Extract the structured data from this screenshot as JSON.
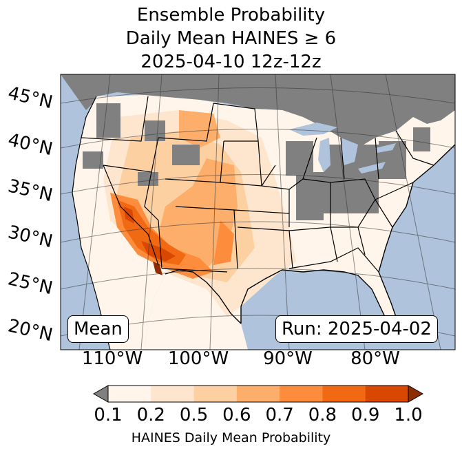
{
  "title": {
    "line1": "Ensemble Probability",
    "line2": "Daily Mean HAINES ≥ 6",
    "line3": "2025-04-10 12z-12z"
  },
  "map": {
    "ocean_color": "#afc4dc",
    "nodata_color": "#808080",
    "lat_labels": [
      "45°N",
      "40°N",
      "35°N",
      "30°N",
      "25°N",
      "20°N"
    ],
    "lon_labels": [
      "110°W",
      "100°W",
      "90°W",
      "80°W"
    ],
    "stat_label": "Mean",
    "run_label": "Run: 2025-04-02"
  },
  "colorbar": {
    "ticks": [
      "0.1",
      "0.2",
      "0.5",
      "0.6",
      "0.7",
      "0.8",
      "0.9",
      "1.0"
    ],
    "colors": [
      "#fff5eb",
      "#fee6ce",
      "#fdd0a2",
      "#fdae6b",
      "#fd8d3c",
      "#f16913",
      "#d94801",
      "#8c2d04"
    ],
    "under_color": "#808080",
    "label": "HAINES Daily Mean Probability"
  }
}
